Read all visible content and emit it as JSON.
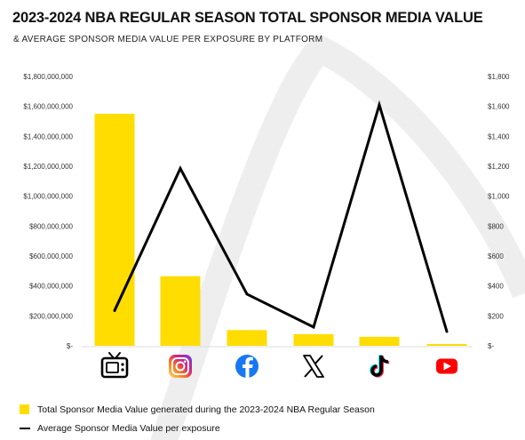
{
  "title": "2023-2024 NBA REGULAR SEASON TOTAL SPONSOR MEDIA VALUE",
  "subtitle": "& AVERAGE SPONSOR MEDIA VALUE PER EXPOSURE BY PLATFORM",
  "colors": {
    "bar": "#FFDD00",
    "line": "#000000",
    "background_swoosh": "#EEEEEE"
  },
  "chart_data": {
    "type": "bar",
    "categories": [
      "TV",
      "Instagram",
      "Facebook",
      "X",
      "TikTok",
      "YouTube"
    ],
    "category_icons": [
      "tv-icon",
      "instagram-icon",
      "facebook-icon",
      "x-icon",
      "tiktok-icon",
      "youtube-icon"
    ],
    "series": [
      {
        "name": "Total Sponsor Media Value generated during the 2023-2024 NBA Regular Season",
        "type": "bar",
        "axis": "left",
        "values": [
          1550000000,
          465000000,
          105000000,
          78000000,
          60000000,
          12000000
        ]
      },
      {
        "name": "Average Sponsor Media Value per exposure",
        "type": "line",
        "axis": "right",
        "values": [
          235,
          1185,
          345,
          125,
          1610,
          95
        ]
      }
    ],
    "left_axis": {
      "ylim": [
        0,
        1800000000
      ],
      "ticks": [
        0,
        200000000,
        400000000,
        600000000,
        800000000,
        1000000000,
        1200000000,
        1400000000,
        1600000000,
        1800000000
      ],
      "tick_labels": [
        "$-",
        "$200,000,000",
        "$400,000,000",
        "$600,000,000",
        "$800,000,000",
        "$1,000,000,000",
        "$1,200,000,000",
        "$1,400,000,000",
        "$1,600,000,000",
        "$1,800,000,000"
      ]
    },
    "right_axis": {
      "ylim": [
        0,
        1800
      ],
      "ticks": [
        0,
        200,
        400,
        600,
        800,
        1000,
        1200,
        1400,
        1600,
        1800
      ],
      "tick_labels": [
        "$-",
        "$200",
        "$400",
        "$600",
        "$800",
        "$1,000",
        "$1,200",
        "$1,400",
        "$1,600",
        "$1,800"
      ]
    },
    "grid": false,
    "legend_position": "bottom-left"
  }
}
